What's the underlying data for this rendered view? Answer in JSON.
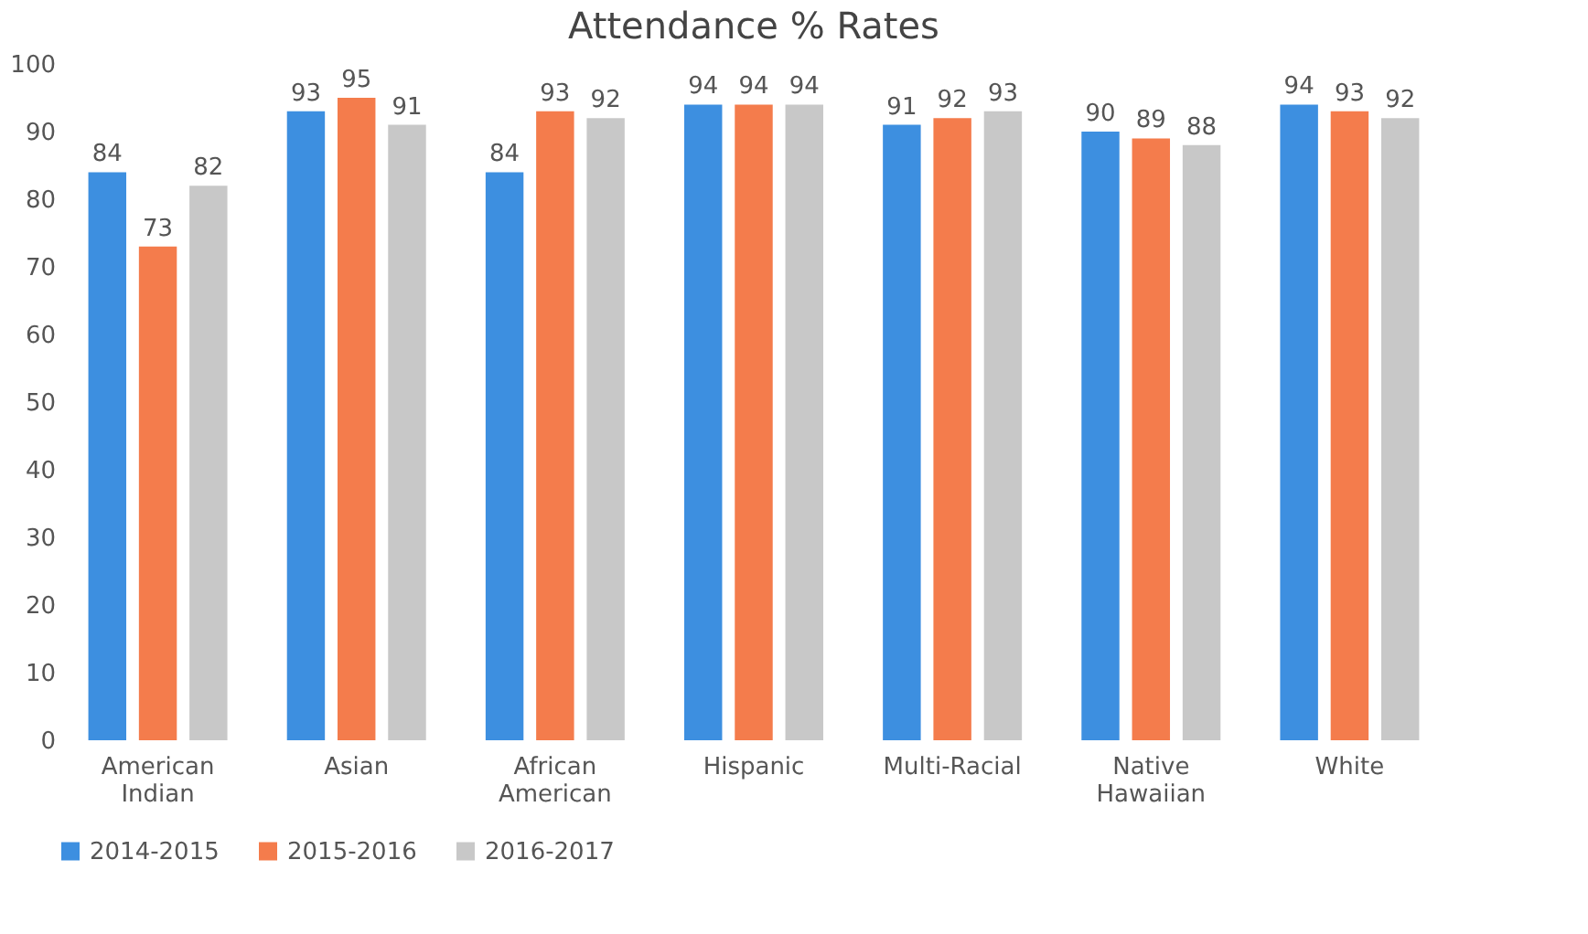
{
  "chart_data": {
    "type": "bar",
    "title": "Attendance % Rates",
    "categories": [
      "American Indian",
      "Asian",
      "African American",
      "Hispanic",
      "Multi-Racial",
      "Native Hawaiian",
      "White"
    ],
    "series": [
      {
        "name": "2014-2015",
        "color": "#3d8fe0",
        "values": [
          84,
          93,
          84,
          94,
          91,
          90,
          94
        ]
      },
      {
        "name": "2015-2016",
        "color": "#f47c4c",
        "values": [
          73,
          95,
          93,
          94,
          92,
          89,
          93
        ]
      },
      {
        "name": "2016-2017",
        "color": "#c8c8c8",
        "values": [
          82,
          91,
          92,
          94,
          93,
          88,
          92
        ]
      }
    ],
    "ylim": [
      0,
      100
    ],
    "yticks": [
      0,
      10,
      20,
      30,
      40,
      50,
      60,
      70,
      80,
      90,
      100
    ],
    "data_labels": true,
    "legend": "bottom"
  }
}
